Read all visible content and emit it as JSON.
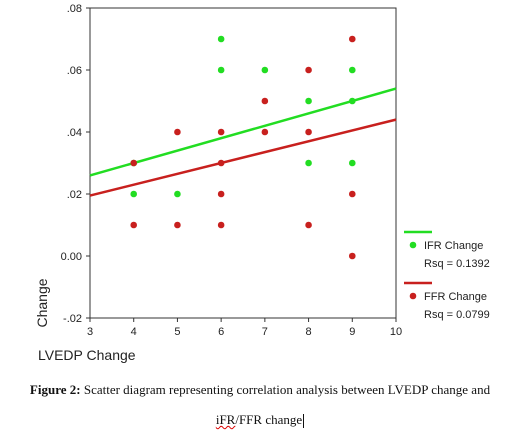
{
  "chart_data": {
    "type": "scatter",
    "xlabel": "LVEDP Change",
    "ylabel": "Change",
    "xlim": [
      3,
      10
    ],
    "ylim": [
      -0.02,
      0.08
    ],
    "x_ticks": [
      "3",
      "4",
      "5",
      "6",
      "7",
      "8",
      "9",
      "10"
    ],
    "y_ticks": [
      "-.02",
      "0.00",
      ".02",
      ".04",
      ".06",
      ".08"
    ],
    "grid": false,
    "legend_position": "right",
    "series": [
      {
        "name": "IFR Change",
        "color": "#22dd22",
        "points": [
          [
            4,
            0.02
          ],
          [
            4,
            0.03
          ],
          [
            5,
            0.02
          ],
          [
            6,
            0.07
          ],
          [
            6,
            0.06
          ],
          [
            7,
            0.06
          ],
          [
            8,
            0.05
          ],
          [
            8,
            0.03
          ],
          [
            9,
            0.06
          ],
          [
            9,
            0.05
          ],
          [
            9,
            0.03
          ]
        ],
        "fit": {
          "x0": 3,
          "y0": 0.026,
          "x1": 10,
          "y1": 0.054
        },
        "rsq_label": "Rsq = 0.1392"
      },
      {
        "name": "FFR Change",
        "color": "#c8201e",
        "points": [
          [
            4,
            0.03
          ],
          [
            4,
            0.01
          ],
          [
            5,
            0.04
          ],
          [
            5,
            0.01
          ],
          [
            6,
            0.04
          ],
          [
            6,
            0.03
          ],
          [
            6,
            0.02
          ],
          [
            6,
            0.01
          ],
          [
            7,
            0.05
          ],
          [
            7,
            0.04
          ],
          [
            8,
            0.06
          ],
          [
            8,
            0.04
          ],
          [
            8,
            0.01
          ],
          [
            9,
            0.07
          ],
          [
            9,
            0.02
          ],
          [
            9,
            0.0
          ]
        ],
        "fit": {
          "x0": 3,
          "y0": 0.0195,
          "x1": 10,
          "y1": 0.044
        },
        "rsq_label": "Rsq = 0.0799"
      }
    ]
  },
  "caption": {
    "label": "Figure 2:",
    "text_line1": "Scatter diagram representing correlation analysis between LVEDP change and",
    "text_line2_a": "iFR",
    "text_line2_b": "/FFR change"
  }
}
